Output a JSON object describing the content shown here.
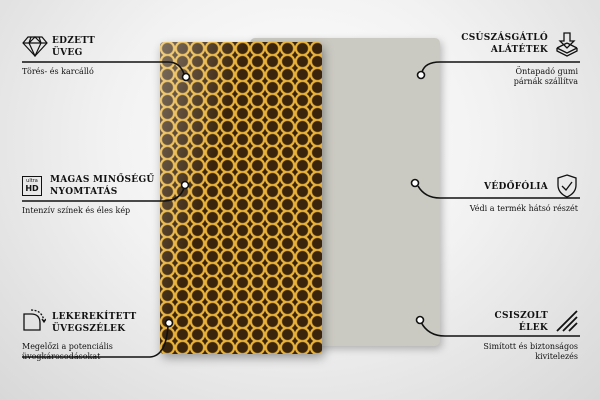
{
  "features": {
    "tempered_glass": {
      "title1": "EDZETT",
      "title2": "ÜVEG",
      "desc": "Törés- és karcálló",
      "icon": "diamond-icon"
    },
    "hd_print": {
      "title1": "MAGAS MINŐSÉGŰ",
      "title2": "NYOMTATÁS",
      "desc": "Intenzív színek és éles kép",
      "icon": "ultra-hd-icon",
      "icon_text1": "ultra",
      "icon_text2": "HD"
    },
    "rounded_edges": {
      "title1": "LEKEREKÍTETT",
      "title2": "ÜVEGSZÉLEK",
      "desc1": "Megelőzi a potenciális",
      "desc2": "üvegkárosodásokat",
      "icon": "rounded-corner-icon"
    },
    "anti_slip": {
      "title1": "CSÚSZÁSGÁTLÓ",
      "title2": "ALÁTÉTEK",
      "desc1": "Öntapadó gumi",
      "desc2": "párnák szállítva",
      "icon": "pad-arrow-icon"
    },
    "protective_film": {
      "title1": "VÉDŐFÓLIA",
      "desc": "Védi a termék hátsó részét",
      "icon": "shield-check-icon"
    },
    "polished_edges": {
      "title1": "CSISZOLT",
      "title2": "ÉLEK",
      "desc1": "Simított és biztonságos",
      "desc2": "kivitelezés",
      "icon": "hatched-edge-icon"
    }
  },
  "colors": {
    "honey": "#e8b23a",
    "comb_dark": "#3a240c",
    "back_panel": "#cbcac2"
  }
}
